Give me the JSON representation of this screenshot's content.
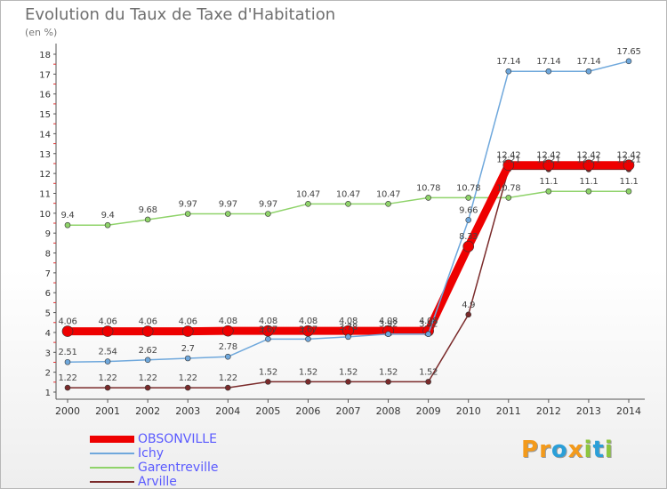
{
  "chart_data": {
    "type": "line",
    "title": "Evolution du Taux de Taxe d'Habitation",
    "subtitle": "(en %)",
    "x": [
      "2000",
      "2001",
      "2002",
      "2003",
      "2004",
      "2005",
      "2006",
      "2007",
      "2008",
      "2009",
      "2010",
      "2011",
      "2012",
      "2013",
      "2014"
    ],
    "ylim": [
      1,
      18
    ],
    "yticks": [
      1,
      2,
      3,
      4,
      5,
      6,
      7,
      8,
      9,
      10,
      11,
      12,
      13,
      14,
      15,
      16,
      17,
      18
    ],
    "grid": false,
    "legend_position": "bottom-left",
    "series": [
      {
        "name": "OBSONVILLE",
        "color": "#ee0000",
        "values": [
          4.06,
          4.06,
          4.06,
          4.06,
          4.08,
          4.08,
          4.08,
          4.08,
          4.08,
          4.08,
          8.33,
          12.42,
          12.42,
          12.42,
          12.42
        ],
        "labels": [
          "4.06",
          "4.06",
          "4.06",
          "4.06",
          "4.08",
          "4.08",
          "4.08",
          "4.08",
          "4.08",
          "4.08",
          "8.33",
          "12.42",
          "12.42",
          "12.42",
          "12.42"
        ]
      },
      {
        "name": "Ichy",
        "color": "#6fa8dc",
        "values": [
          2.51,
          2.54,
          2.62,
          2.7,
          2.78,
          3.67,
          3.67,
          3.78,
          3.92,
          3.92,
          9.66,
          17.14,
          17.14,
          17.14,
          17.65
        ],
        "labels": [
          "2.51",
          "2.54",
          "2.62",
          "2.7",
          "2.78",
          "3.67",
          "3.67",
          "3.78",
          "3.92",
          "3.92",
          "9.66",
          "17.14",
          "17.14",
          "17.14",
          "17.65"
        ]
      },
      {
        "name": "Garentreville",
        "color": "#8fd36a",
        "values": [
          9.4,
          9.4,
          9.68,
          9.97,
          9.97,
          9.97,
          10.47,
          10.47,
          10.47,
          10.78,
          10.78,
          10.78,
          11.1,
          11.1,
          11.1
        ],
        "labels": [
          "9.4",
          "9.4",
          "9.68",
          "9.97",
          "9.97",
          "9.97",
          "10.47",
          "10.47",
          "10.47",
          "10.78",
          "10.78",
          "10.78",
          "11.1",
          "11.1",
          "11.1"
        ]
      },
      {
        "name": "Arville",
        "color": "#7a2a2a",
        "values": [
          1.22,
          1.22,
          1.22,
          1.22,
          1.22,
          1.52,
          1.52,
          1.52,
          1.52,
          1.52,
          4.9,
          12.21,
          12.21,
          12.21,
          12.21
        ],
        "labels": [
          "1.22",
          "1.22",
          "1.22",
          "1.22",
          "1.22",
          "1.52",
          "1.52",
          "1.52",
          "1.52",
          "1.52",
          "4.9",
          "12.21",
          "12.21",
          "12.21",
          "12.21"
        ]
      }
    ]
  },
  "brand": {
    "text": "Proxiti",
    "letters": [
      "P",
      "r",
      "o",
      "x",
      "i",
      "t",
      "i"
    ],
    "colors": [
      "#f39a1b",
      "#f39a1b",
      "#2b9fd8",
      "#f39a1b",
      "#8dc63f",
      "#2b9fd8",
      "#8dc63f"
    ]
  }
}
